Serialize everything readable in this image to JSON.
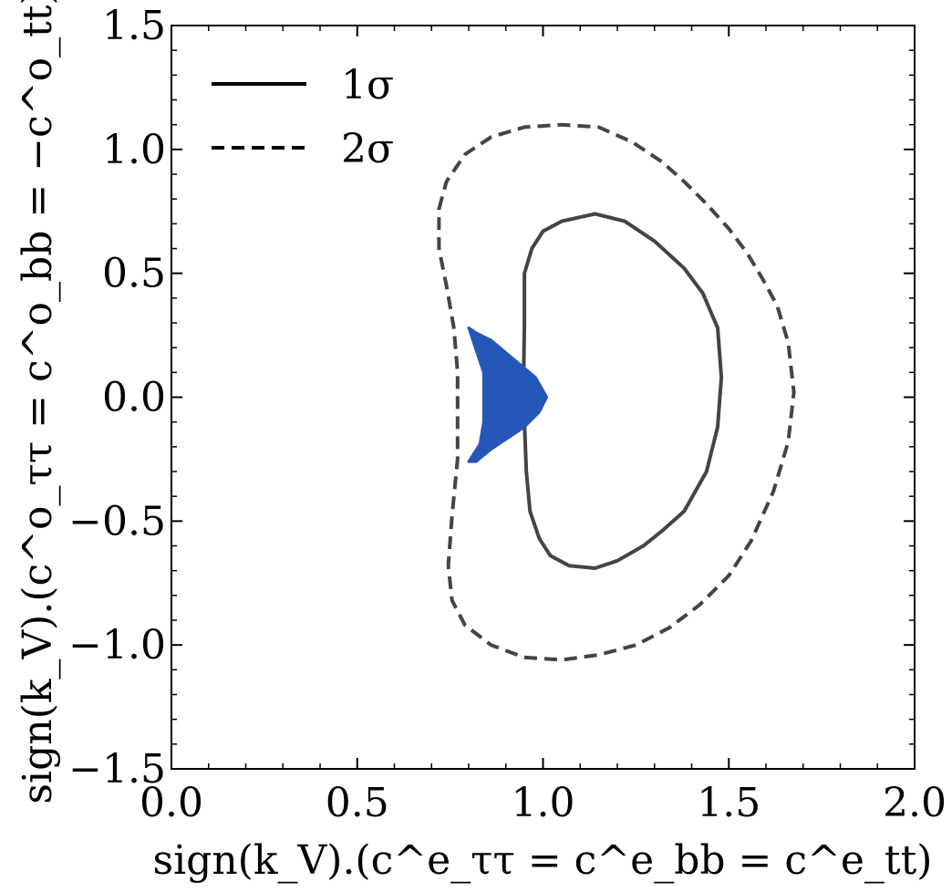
{
  "chart_data": {
    "type": "contour",
    "xlabel": "sign(k_V).(c^e_ττ = c^e_bb = c^e_tt)",
    "ylabel": "sign(k_V).(c^o_ττ = c^o_bb = −c^o_tt)",
    "xlim": [
      0.0,
      2.0
    ],
    "ylim": [
      -1.5,
      1.5
    ],
    "x_ticks": [
      0.0,
      0.5,
      1.0,
      1.5,
      2.0
    ],
    "x_tick_labels": [
      "0.0",
      "0.5",
      "1.0",
      "1.5",
      "2.0"
    ],
    "y_ticks": [
      1.5,
      1.0,
      0.5,
      0.0,
      -0.5,
      -1.0,
      -1.5
    ],
    "y_tick_labels": [
      "1.5",
      "1.0",
      "0.5",
      "0.0",
      "−0.5",
      "−1.0",
      "−1.5"
    ],
    "grid": false,
    "legend_position": "top-left",
    "legend": [
      {
        "label": "1σ",
        "style": "solid"
      },
      {
        "label": "2σ",
        "style": "dashed"
      }
    ],
    "series": [
      {
        "name": "1σ",
        "style": "solid",
        "color": "#444444",
        "points": [
          [
            0.95,
            0.5
          ],
          [
            0.97,
            0.6
          ],
          [
            1.0,
            0.67
          ],
          [
            1.05,
            0.71
          ],
          [
            1.14,
            0.74
          ],
          [
            1.22,
            0.71
          ],
          [
            1.3,
            0.63
          ],
          [
            1.38,
            0.52
          ],
          [
            1.43,
            0.42
          ],
          [
            1.47,
            0.28
          ],
          [
            1.48,
            0.08
          ],
          [
            1.47,
            -0.12
          ],
          [
            1.44,
            -0.3
          ],
          [
            1.38,
            -0.46
          ],
          [
            1.32,
            -0.54
          ],
          [
            1.27,
            -0.6
          ],
          [
            1.2,
            -0.66
          ],
          [
            1.14,
            -0.69
          ],
          [
            1.07,
            -0.68
          ],
          [
            1.02,
            -0.64
          ],
          [
            0.99,
            -0.57
          ],
          [
            0.965,
            -0.46
          ],
          [
            0.955,
            -0.3
          ],
          [
            0.95,
            -0.1
          ],
          [
            0.948,
            0.1
          ],
          [
            0.95,
            0.3
          ],
          [
            0.95,
            0.5
          ]
        ]
      },
      {
        "name": "2σ",
        "style": "dashed",
        "color": "#444444",
        "points": [
          [
            0.72,
            0.76
          ],
          [
            0.74,
            0.87
          ],
          [
            0.79,
            0.98
          ],
          [
            0.86,
            1.05
          ],
          [
            0.95,
            1.09
          ],
          [
            1.05,
            1.1
          ],
          [
            1.15,
            1.09
          ],
          [
            1.24,
            1.03
          ],
          [
            1.32,
            0.95
          ],
          [
            1.38,
            0.87
          ],
          [
            1.44,
            0.78
          ],
          [
            1.5,
            0.68
          ],
          [
            1.55,
            0.58
          ],
          [
            1.59,
            0.48
          ],
          [
            1.63,
            0.37
          ],
          [
            1.66,
            0.22
          ],
          [
            1.675,
            0.02
          ],
          [
            1.66,
            -0.18
          ],
          [
            1.62,
            -0.38
          ],
          [
            1.56,
            -0.58
          ],
          [
            1.5,
            -0.72
          ],
          [
            1.42,
            -0.84
          ],
          [
            1.34,
            -0.93
          ],
          [
            1.25,
            -1.0
          ],
          [
            1.15,
            -1.04
          ],
          [
            1.05,
            -1.06
          ],
          [
            0.95,
            -1.05
          ],
          [
            0.86,
            -1.0
          ],
          [
            0.79,
            -0.92
          ],
          [
            0.755,
            -0.82
          ],
          [
            0.745,
            -0.68
          ],
          [
            0.755,
            -0.48
          ],
          [
            0.77,
            -0.25
          ],
          [
            0.77,
            -0.05
          ],
          [
            0.77,
            0.1
          ],
          [
            0.76,
            0.28
          ],
          [
            0.74,
            0.45
          ],
          [
            0.72,
            0.6
          ],
          [
            0.72,
            0.76
          ]
        ]
      },
      {
        "name": "",
        "style": "filled",
        "color": "#2457b8",
        "points": [
          [
            0.8,
            0.28
          ],
          [
            0.82,
            0.26
          ],
          [
            0.86,
            0.23
          ],
          [
            0.9,
            0.18
          ],
          [
            0.94,
            0.13
          ],
          [
            0.98,
            0.08
          ],
          [
            1.01,
            0.0
          ],
          [
            0.99,
            -0.06
          ],
          [
            0.95,
            -0.12
          ],
          [
            0.9,
            -0.17
          ],
          [
            0.86,
            -0.21
          ],
          [
            0.82,
            -0.26
          ],
          [
            0.8,
            -0.26
          ],
          [
            0.83,
            -0.19
          ],
          [
            0.84,
            -0.1
          ],
          [
            0.84,
            0.0
          ],
          [
            0.84,
            0.1
          ],
          [
            0.82,
            0.19
          ],
          [
            0.8,
            0.28
          ]
        ]
      }
    ]
  }
}
